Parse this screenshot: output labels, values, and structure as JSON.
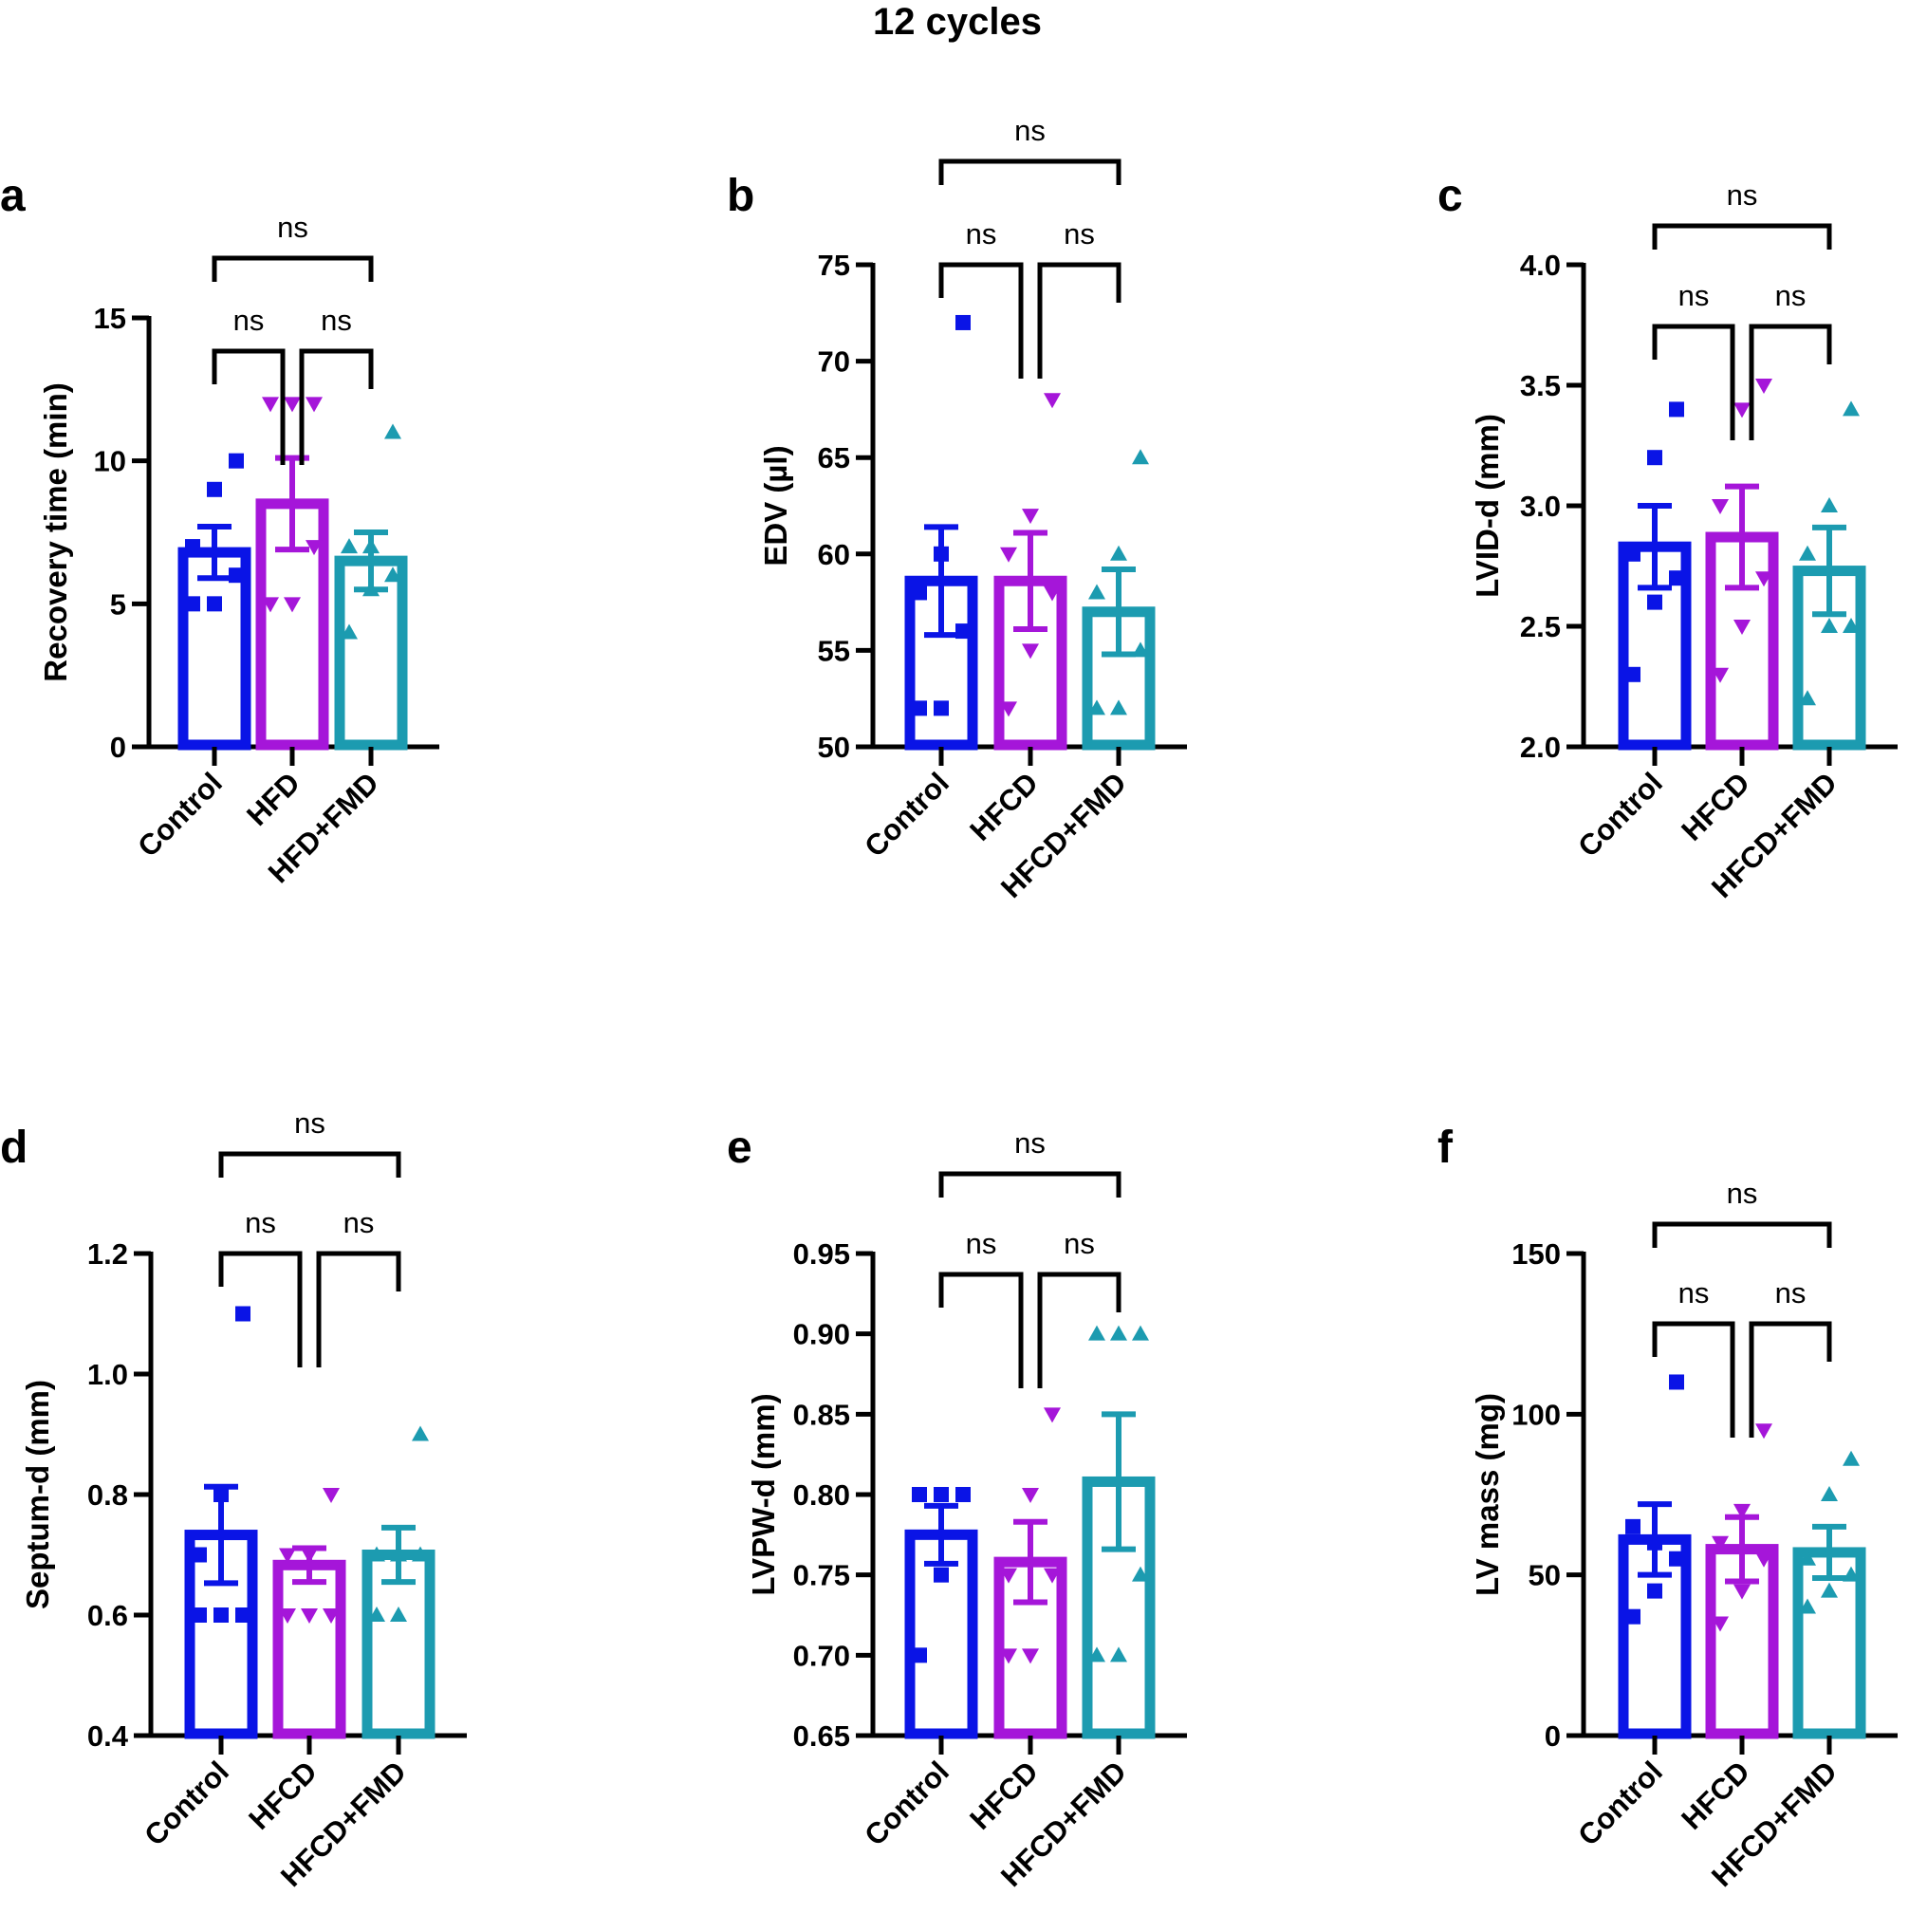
{
  "figure_title": "12 cycles",
  "colors": {
    "control": "#0a14e6",
    "hfd": "#a516d9",
    "fmd": "#1c9bb0"
  },
  "chart_data": [
    {
      "panel": "a",
      "type": "bar",
      "ylabel": "Recovery time (min)",
      "categories": [
        "Control",
        "HFD",
        "HFD+FMD"
      ],
      "ylim": [
        0,
        15
      ],
      "yticks": [
        0,
        5,
        10,
        15
      ],
      "ytick_labels": [
        "0",
        "5",
        "10",
        "15"
      ],
      "values": [
        6.8,
        8.5,
        6.5
      ],
      "sem": [
        0.9,
        1.6,
        1.0
      ],
      "points": [
        [
          5,
          5,
          6,
          7,
          9,
          10
        ],
        [
          5,
          5,
          7,
          12,
          12,
          12
        ],
        [
          4,
          5.5,
          6,
          7,
          7,
          11
        ]
      ],
      "comparisons": [
        {
          "pair": [
            0,
            1
          ],
          "label": "ns"
        },
        {
          "pair": [
            1,
            2
          ],
          "label": "ns"
        },
        {
          "pair": [
            0,
            2
          ],
          "label": "ns"
        }
      ]
    },
    {
      "panel": "b",
      "type": "bar",
      "ylabel": "EDV (µl)",
      "categories": [
        "Control",
        "HFCD",
        "HFCD+FMD"
      ],
      "ylim": [
        50,
        75
      ],
      "yticks": [
        50,
        55,
        60,
        65,
        70,
        75
      ],
      "ytick_labels": [
        "50",
        "55",
        "60",
        "65",
        "70",
        "75"
      ],
      "values": [
        58.6,
        58.6,
        57.0
      ],
      "sem": [
        2.8,
        2.5,
        2.2
      ],
      "points": [
        [
          52,
          52,
          56,
          58,
          60,
          72
        ],
        [
          52,
          55,
          58,
          60,
          62,
          68
        ],
        [
          52,
          52,
          55,
          58,
          60,
          65
        ]
      ],
      "comparisons": [
        {
          "pair": [
            0,
            1
          ],
          "label": "ns"
        },
        {
          "pair": [
            1,
            2
          ],
          "label": "ns"
        },
        {
          "pair": [
            0,
            2
          ],
          "label": "ns"
        }
      ]
    },
    {
      "panel": "c",
      "type": "bar",
      "ylabel": "LVID-d (mm)",
      "categories": [
        "Control",
        "HFCD",
        "HFCD+FMD"
      ],
      "ylim": [
        2.0,
        4.0
      ],
      "yticks": [
        2.0,
        2.5,
        3.0,
        3.5,
        4.0
      ],
      "ytick_labels": [
        "2.0",
        "2.5",
        "3.0",
        "3.5",
        "4.0"
      ],
      "values": [
        2.83,
        2.87,
        2.73
      ],
      "sem": [
        0.17,
        0.21,
        0.18
      ],
      "points": [
        [
          2.3,
          2.6,
          2.7,
          2.8,
          3.2,
          3.4
        ],
        [
          2.3,
          2.5,
          2.7,
          3.0,
          3.4,
          3.5
        ],
        [
          2.2,
          2.5,
          2.5,
          2.8,
          3.0,
          3.4
        ]
      ],
      "comparisons": [
        {
          "pair": [
            0,
            1
          ],
          "label": "ns"
        },
        {
          "pair": [
            1,
            2
          ],
          "label": "ns"
        },
        {
          "pair": [
            0,
            2
          ],
          "label": "ns"
        }
      ]
    },
    {
      "panel": "d",
      "type": "bar",
      "ylabel": "Septum-d (mm)",
      "categories": [
        "Control",
        "HFCD",
        "HFCD+FMD"
      ],
      "ylim": [
        0.4,
        1.2
      ],
      "yticks": [
        0.4,
        0.6,
        0.8,
        1.0,
        1.2
      ],
      "ytick_labels": [
        "0.4",
        "0.6",
        "0.8",
        "1.0",
        "1.2"
      ],
      "values": [
        0.733,
        0.683,
        0.7
      ],
      "sem": [
        0.08,
        0.028,
        0.045
      ],
      "points": [
        [
          0.6,
          0.6,
          0.6,
          0.7,
          0.8,
          1.1
        ],
        [
          0.6,
          0.6,
          0.6,
          0.7,
          0.7,
          0.8
        ],
        [
          0.6,
          0.6,
          0.7,
          0.7,
          0.7,
          0.9
        ]
      ],
      "comparisons": [
        {
          "pair": [
            0,
            1
          ],
          "label": "ns"
        },
        {
          "pair": [
            1,
            2
          ],
          "label": "ns"
        },
        {
          "pair": [
            0,
            2
          ],
          "label": "ns"
        }
      ]
    },
    {
      "panel": "e",
      "type": "bar",
      "ylabel": "LVPW-d (mm)",
      "categories": [
        "Control",
        "HFCD",
        "HFCD+FMD"
      ],
      "ylim": [
        0.65,
        0.95
      ],
      "yticks": [
        0.65,
        0.7,
        0.75,
        0.8,
        0.85,
        0.9,
        0.95
      ],
      "ytick_labels": [
        "0.65",
        "0.70",
        "0.75",
        "0.80",
        "0.85",
        "0.90",
        "0.95"
      ],
      "values": [
        0.775,
        0.758,
        0.808
      ],
      "sem": [
        0.018,
        0.025,
        0.042
      ],
      "points": [
        [
          0.7,
          0.75,
          0.8,
          0.8,
          0.8,
          0.8
        ],
        [
          0.7,
          0.7,
          0.75,
          0.75,
          0.8,
          0.85
        ],
        [
          0.7,
          0.7,
          0.75,
          0.9,
          0.9,
          0.9
        ]
      ],
      "comparisons": [
        {
          "pair": [
            0,
            1
          ],
          "label": "ns"
        },
        {
          "pair": [
            1,
            2
          ],
          "label": "ns"
        },
        {
          "pair": [
            0,
            2
          ],
          "label": "ns"
        }
      ]
    },
    {
      "panel": "f",
      "type": "bar",
      "ylabel": "LV mass (mg)",
      "categories": [
        "Control",
        "HFCD",
        "HFCD+FMD"
      ],
      "ylim": [
        0,
        150
      ],
      "yticks": [
        0,
        50,
        100,
        150
      ],
      "ytick_labels": [
        "0",
        "50",
        "100",
        "150"
      ],
      "values": [
        61,
        58,
        57
      ],
      "sem": [
        11,
        10,
        8
      ],
      "points": [
        [
          37,
          45,
          55,
          65,
          60,
          110
        ],
        [
          35,
          45,
          55,
          60,
          70,
          95
        ],
        [
          40,
          45,
          50,
          55,
          75,
          86
        ]
      ],
      "comparisons": [
        {
          "pair": [
            0,
            1
          ],
          "label": "ns"
        },
        {
          "pair": [
            1,
            2
          ],
          "label": "ns"
        },
        {
          "pair": [
            0,
            2
          ],
          "label": "ns"
        }
      ]
    }
  ]
}
